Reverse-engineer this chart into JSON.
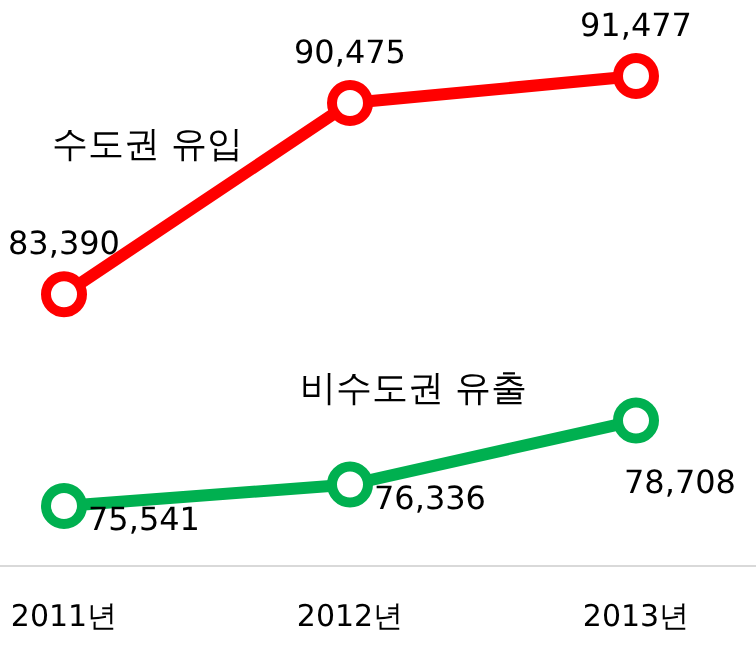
{
  "chart_data": {
    "type": "line",
    "categories": [
      "2011년",
      "2012년",
      "2013년"
    ],
    "series": [
      {
        "name": "수도권 유입",
        "color": "#ff0000",
        "values": [
          83390,
          90475,
          91477
        ],
        "value_labels": [
          "83,390",
          "90,475",
          "91,477"
        ]
      },
      {
        "name": "비수도권 유출",
        "color": "#00b050",
        "values": [
          75541,
          76336,
          78708
        ],
        "value_labels": [
          "75,541",
          "76,336",
          "78,708"
        ]
      }
    ],
    "marker": "circle"
  }
}
